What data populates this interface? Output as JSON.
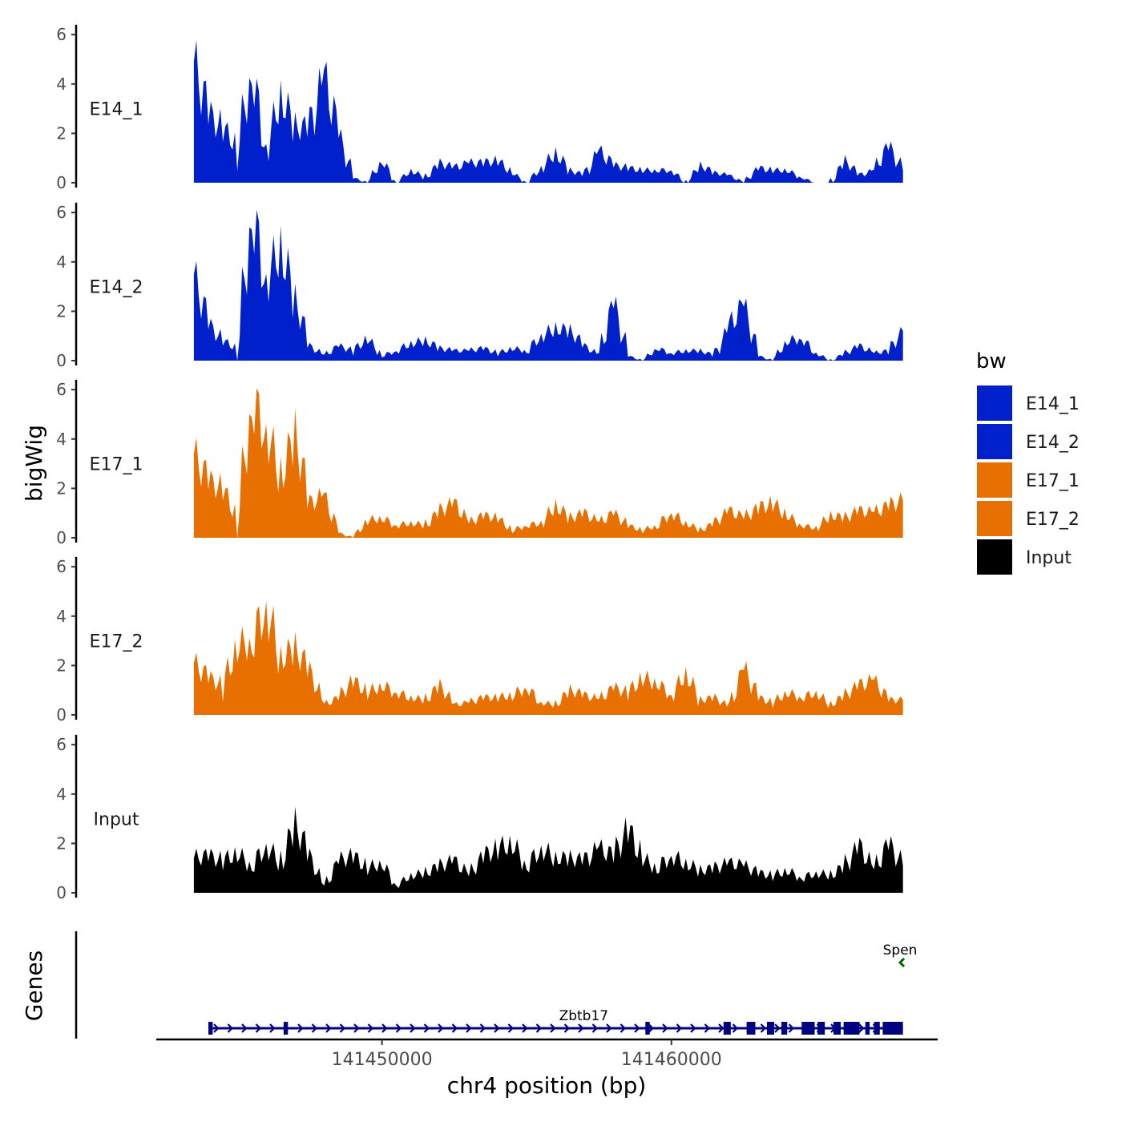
{
  "chart_data": {
    "type": "area",
    "title": "",
    "ylabel": "bigWig",
    "genes_label": "Genes",
    "xlabel": "chr4 position (bp)",
    "xlim": [
      141442200,
      141469200
    ],
    "ylim": [
      0,
      6
    ],
    "yticks": [
      0,
      2,
      4,
      6
    ],
    "xticks": [
      141450000,
      141460000
    ],
    "xtick_labels": [
      "141450000",
      "141460000"
    ],
    "tracks": [
      {
        "name": "E14_1",
        "color": "#0020CC",
        "x": [
          141443500,
          141444000,
          141444500,
          141445000,
          141445500,
          141446000,
          141446500,
          141447000,
          141447500,
          141448000,
          141448500,
          141449000,
          141449500,
          141450000,
          141450500,
          141451000,
          141451500,
          141452000,
          141452500,
          141453000,
          141453500,
          141454000,
          141454500,
          141455000,
          141455500,
          141456000,
          141456500,
          141457000,
          141457500,
          141458000,
          141458500,
          141459000,
          141459500,
          141460000,
          141460500,
          141461000,
          141461500,
          141462000,
          141462500,
          141463000,
          141463500,
          141464000,
          141464500,
          141465000,
          141465500,
          141466000,
          141466500,
          141467000,
          141467500,
          141468000
        ],
        "values": [
          4.9,
          2.8,
          2.2,
          1.5,
          4.5,
          1.4,
          3.5,
          2.3,
          2.2,
          4.3,
          2.0,
          0.2,
          0.0,
          0.9,
          0.0,
          0.5,
          0.2,
          0.8,
          0.6,
          0.8,
          0.8,
          0.9,
          0.4,
          0.0,
          0.6,
          1.2,
          0.5,
          0.3,
          1.3,
          0.7,
          0.6,
          0.5,
          0.5,
          0.5,
          0.0,
          0.7,
          0.4,
          0.3,
          0.0,
          0.6,
          0.5,
          0.5,
          0.2,
          0.0,
          0.0,
          0.9,
          0.3,
          0.5,
          1.5,
          0.5
        ]
      },
      {
        "name": "E14_2",
        "color": "#0020CC",
        "x": [
          141443500,
          141444000,
          141444500,
          141445000,
          141445500,
          141446000,
          141446500,
          141447000,
          141447500,
          141448000,
          141448500,
          141449000,
          141449500,
          141450000,
          141450500,
          141451000,
          141451500,
          141452000,
          141452500,
          141453000,
          141453500,
          141454000,
          141454500,
          141455000,
          141455500,
          141456000,
          141456500,
          141457000,
          141457500,
          141458000,
          141458500,
          141459000,
          141459500,
          141460000,
          141460500,
          141461000,
          141461500,
          141462000,
          141462500,
          141463000,
          141463500,
          141464000,
          141464500,
          141465000,
          141465500,
          141466000,
          141466500,
          141467000,
          141467500,
          141468000
        ],
        "values": [
          3.5,
          1.5,
          0.8,
          0.5,
          6.0,
          3.3,
          4.6,
          2.5,
          0.6,
          0.2,
          0.6,
          0.4,
          0.9,
          0.2,
          0.4,
          0.7,
          0.8,
          0.5,
          0.4,
          0.4,
          0.5,
          0.3,
          0.5,
          0.4,
          1.0,
          1.3,
          1.2,
          0.6,
          0.2,
          2.4,
          0.2,
          0.0,
          0.5,
          0.3,
          0.4,
          0.4,
          0.2,
          1.4,
          2.3,
          0.2,
          0.0,
          0.8,
          0.9,
          0.3,
          0.0,
          0.3,
          0.6,
          0.3,
          0.4,
          1.2
        ]
      },
      {
        "name": "E17_1",
        "color": "#E87000",
        "x": [
          141443500,
          141444000,
          141444500,
          141445000,
          141445500,
          141446000,
          141446500,
          141447000,
          141447500,
          141448000,
          141448500,
          141449000,
          141449500,
          141450000,
          141450500,
          141451000,
          141451500,
          141452000,
          141452500,
          141453000,
          141453500,
          141454000,
          141454500,
          141455000,
          141455500,
          141456000,
          141456500,
          141457000,
          141457500,
          141458000,
          141458500,
          141459000,
          141459500,
          141460000,
          141460500,
          141461000,
          141461500,
          141462000,
          141462500,
          141463000,
          141463500,
          141464000,
          141464500,
          141465000,
          141465500,
          141466000,
          141466500,
          141467000,
          141467500,
          141468000
        ],
        "values": [
          3.4,
          2.3,
          2.0,
          0.8,
          5.5,
          4.4,
          2.5,
          4.2,
          1.4,
          1.7,
          0.2,
          0.0,
          0.7,
          0.8,
          0.5,
          0.6,
          0.5,
          1.1,
          1.4,
          0.6,
          0.9,
          0.8,
          0.3,
          0.5,
          0.6,
          1.3,
          0.8,
          1.0,
          0.6,
          1.0,
          0.5,
          0.3,
          0.5,
          1.0,
          0.6,
          0.3,
          0.6,
          1.1,
          0.8,
          1.2,
          1.4,
          0.9,
          0.5,
          0.4,
          0.9,
          0.8,
          1.1,
          1.0,
          1.3,
          1.5
        ]
      },
      {
        "name": "E17_2",
        "color": "#E87000",
        "x": [
          141443500,
          141444000,
          141444500,
          141445000,
          141445500,
          141446000,
          141446500,
          141447000,
          141447500,
          141448000,
          141448500,
          141449000,
          141449500,
          141450000,
          141450500,
          141451000,
          141451500,
          141452000,
          141452500,
          141453000,
          141453500,
          141454000,
          141454500,
          141455000,
          141455500,
          141456000,
          141456500,
          141457000,
          141457500,
          141458000,
          141458500,
          141459000,
          141459500,
          141460000,
          141460500,
          141461000,
          141461500,
          141462000,
          141462500,
          141463000,
          141463500,
          141464000,
          141464500,
          141465000,
          141465500,
          141466000,
          141466500,
          141467000,
          141467500,
          141468000
        ],
        "values": [
          2.1,
          1.5,
          1.2,
          2.8,
          3.0,
          4.4,
          2.3,
          2.7,
          1.8,
          0.4,
          0.7,
          1.4,
          0.9,
          1.2,
          0.9,
          0.7,
          0.6,
          1.2,
          0.4,
          0.5,
          0.7,
          0.7,
          0.8,
          1.1,
          0.5,
          0.4,
          1.0,
          0.8,
          0.6,
          1.1,
          0.9,
          1.5,
          1.3,
          0.8,
          1.7,
          0.6,
          0.7,
          0.3,
          1.9,
          0.7,
          0.5,
          0.9,
          0.7,
          0.9,
          0.4,
          0.8,
          1.2,
          1.4,
          0.6,
          0.6
        ]
      },
      {
        "name": "Input",
        "color": "#000000",
        "x": [
          141443500,
          141444000,
          141444500,
          141445000,
          141445500,
          141446000,
          141446500,
          141447000,
          141447500,
          141448000,
          141448500,
          141449000,
          141449500,
          141450000,
          141450500,
          141451000,
          141451500,
          141452000,
          141452500,
          141453000,
          141453500,
          141454000,
          141454500,
          141455000,
          141455500,
          141456000,
          141456500,
          141457000,
          141457500,
          141458000,
          141458500,
          141459000,
          141459500,
          141460000,
          141460500,
          141461000,
          141461500,
          141462000,
          141462500,
          141463000,
          141463500,
          141464000,
          141464500,
          141465000,
          141465500,
          141466000,
          141466500,
          141467000,
          141467500,
          141468000
        ],
        "values": [
          1.4,
          1.5,
          1.3,
          1.6,
          1.1,
          1.9,
          1.2,
          2.8,
          1.5,
          0.2,
          1.3,
          1.5,
          1.0,
          1.2,
          0.3,
          0.7,
          0.8,
          1.1,
          1.3,
          0.7,
          1.5,
          1.8,
          2.0,
          1.1,
          1.8,
          1.4,
          1.4,
          1.3,
          1.8,
          1.5,
          2.6,
          1.4,
          1.0,
          1.5,
          1.2,
          0.9,
          1.0,
          1.2,
          1.1,
          0.8,
          0.7,
          0.9,
          0.6,
          0.8,
          0.7,
          1.1,
          1.9,
          0.9,
          2.0,
          1.1
        ]
      }
    ],
    "legend": {
      "title": "bw",
      "position": "right",
      "entries": [
        {
          "label": "E14_1",
          "color": "#0020CC"
        },
        {
          "label": "E14_2",
          "color": "#0020CC"
        },
        {
          "label": "E17_1",
          "color": "#E87000"
        },
        {
          "label": "E17_2",
          "color": "#E87000"
        },
        {
          "label": "Input",
          "color": "#000000"
        }
      ]
    },
    "genes": [
      {
        "name": "Zbtb17",
        "strand": "+",
        "start": 141444000,
        "end": 141468000,
        "color": "#000080",
        "exons": [
          [
            141444000,
            141444150
          ],
          [
            141446600,
            141446750
          ],
          [
            141459100,
            141459250
          ],
          [
            141461800,
            141462050
          ],
          [
            141462600,
            141462900
          ],
          [
            141463300,
            141463550
          ],
          [
            141463800,
            141464000
          ],
          [
            141464500,
            141464950
          ],
          [
            141465050,
            141465300
          ],
          [
            141465600,
            141465850
          ],
          [
            141465950,
            141466500
          ],
          [
            141466700,
            141466850
          ],
          [
            141467000,
            141467200
          ],
          [
            141467300,
            141468000
          ]
        ]
      },
      {
        "name": "Spen",
        "strand": "-",
        "start": 141467900,
        "end": 141468050,
        "color": "#006400",
        "exons": []
      }
    ]
  }
}
